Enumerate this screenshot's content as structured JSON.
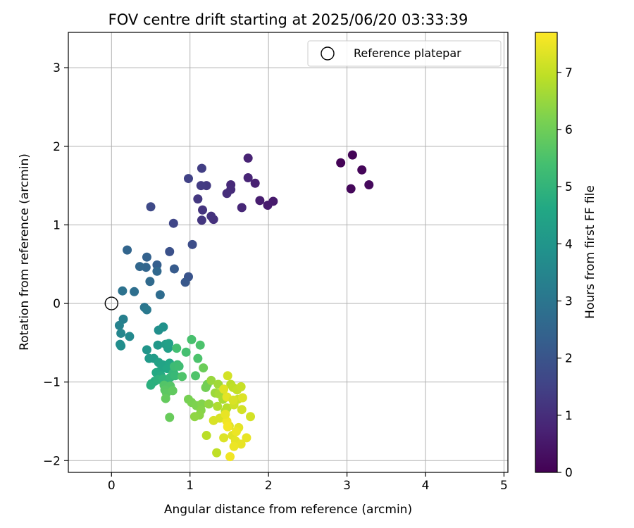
{
  "chart_data": {
    "type": "scatter",
    "title": "FOV centre drift starting at 2025/06/20 03:33:39",
    "xlabel": "Angular distance from reference (arcmin)",
    "ylabel": "Rotation from reference (arcmin)",
    "xlim": [
      -0.55,
      5.05
    ],
    "ylim": [
      -2.15,
      3.45
    ],
    "xticks": [
      0,
      1,
      2,
      3,
      4,
      5
    ],
    "yticks": [
      -2,
      -1,
      0,
      1,
      2,
      3
    ],
    "xtick_labels": [
      "0",
      "1",
      "2",
      "3",
      "4",
      "5"
    ],
    "ytick_labels": [
      "−2",
      "−1",
      "0",
      "1",
      "2",
      "3"
    ],
    "grid": true,
    "legend": {
      "placement": "top-right",
      "entries": [
        {
          "label": "Reference platepar",
          "marker": "open-circle",
          "x": 0,
          "y": 0
        }
      ]
    },
    "colorbar": {
      "label": "Hours from first FF file",
      "colormap": "viridis",
      "range": [
        0,
        7.7
      ],
      "ticks": [
        0,
        1,
        2,
        3,
        4,
        5,
        6,
        7
      ],
      "tick_labels": [
        "0",
        "1",
        "2",
        "3",
        "4",
        "5",
        "6",
        "7"
      ]
    },
    "series": [
      {
        "columns": [
          "x",
          "y",
          "hours"
        ],
        "points": [
          [
            2.92,
            1.79,
            0.05
          ],
          [
            3.07,
            1.89,
            0.08
          ],
          [
            3.19,
            1.7,
            0.12
          ],
          [
            3.05,
            1.46,
            0.15
          ],
          [
            3.28,
            1.51,
            0.18
          ],
          [
            2.06,
            1.3,
            0.55
          ],
          [
            1.99,
            1.25,
            0.58
          ],
          [
            1.89,
            1.31,
            0.62
          ],
          [
            1.83,
            1.53,
            0.7
          ],
          [
            1.74,
            1.85,
            0.75
          ],
          [
            1.74,
            1.6,
            0.8
          ],
          [
            1.66,
            1.22,
            0.85
          ],
          [
            1.52,
            1.51,
            0.9
          ],
          [
            1.52,
            1.45,
            0.95
          ],
          [
            1.47,
            1.4,
            1.0
          ],
          [
            1.3,
            1.07,
            1.05
          ],
          [
            1.27,
            1.11,
            1.1
          ],
          [
            1.16,
            1.19,
            1.15
          ],
          [
            1.15,
            1.06,
            1.2
          ],
          [
            1.1,
            1.33,
            1.25
          ],
          [
            1.21,
            1.5,
            1.3
          ],
          [
            1.14,
            1.5,
            1.35
          ],
          [
            1.15,
            1.72,
            1.4
          ],
          [
            0.98,
            1.59,
            1.5
          ],
          [
            0.79,
            1.02,
            1.6
          ],
          [
            0.5,
            1.23,
            1.7
          ],
          [
            1.03,
            0.75,
            1.8
          ],
          [
            0.74,
            0.66,
            1.9
          ],
          [
            0.98,
            0.34,
            2.0
          ],
          [
            0.94,
            0.27,
            2.1
          ],
          [
            0.8,
            0.44,
            2.2
          ],
          [
            0.58,
            0.49,
            2.3
          ],
          [
            0.45,
            0.59,
            2.4
          ],
          [
            0.44,
            0.46,
            2.5
          ],
          [
            0.2,
            0.68,
            2.5
          ],
          [
            0.36,
            0.47,
            2.55
          ],
          [
            0.58,
            0.41,
            2.6
          ],
          [
            0.49,
            0.28,
            2.65
          ],
          [
            0.62,
            0.11,
            2.7
          ],
          [
            0.29,
            0.15,
            2.8
          ],
          [
            0.14,
            0.16,
            2.9
          ],
          [
            0.42,
            -0.05,
            3.0
          ],
          [
            0.45,
            -0.08,
            3.1
          ],
          [
            0.15,
            -0.2,
            3.3
          ],
          [
            0.1,
            -0.28,
            3.4
          ],
          [
            0.12,
            -0.38,
            3.5
          ],
          [
            0.23,
            -0.42,
            3.6
          ],
          [
            0.11,
            -0.52,
            3.7
          ],
          [
            0.12,
            -0.54,
            3.75
          ],
          [
            0.6,
            -0.34,
            3.8
          ],
          [
            0.66,
            -0.3,
            3.9
          ],
          [
            0.45,
            -0.59,
            4.0
          ],
          [
            0.59,
            -0.53,
            4.1
          ],
          [
            0.48,
            -0.7,
            4.15
          ],
          [
            0.54,
            -0.7,
            4.2
          ],
          [
            0.69,
            -0.52,
            4.25
          ],
          [
            0.72,
            -0.57,
            4.3
          ],
          [
            0.73,
            -0.51,
            4.35
          ],
          [
            0.6,
            -0.75,
            4.4
          ],
          [
            0.65,
            -0.78,
            4.45
          ],
          [
            0.62,
            -0.86,
            4.5
          ],
          [
            0.74,
            -0.76,
            4.55
          ],
          [
            0.71,
            -0.83,
            4.6
          ],
          [
            0.57,
            -0.88,
            4.65
          ],
          [
            0.63,
            -0.92,
            4.7
          ],
          [
            0.55,
            -0.99,
            4.75
          ],
          [
            0.51,
            -1.02,
            4.8
          ],
          [
            0.5,
            -1.04,
            4.85
          ],
          [
            0.59,
            -0.97,
            4.9
          ],
          [
            0.66,
            -0.96,
            4.95
          ],
          [
            0.7,
            -1.0,
            5.0
          ],
          [
            0.75,
            -0.94,
            5.05
          ],
          [
            0.79,
            -0.88,
            5.1
          ],
          [
            0.81,
            -0.92,
            5.15
          ],
          [
            0.84,
            -0.78,
            5.2
          ],
          [
            0.8,
            -0.8,
            5.25
          ],
          [
            0.86,
            -0.8,
            5.3
          ],
          [
            0.83,
            -0.57,
            5.35
          ],
          [
            0.95,
            -0.62,
            5.4
          ],
          [
            1.02,
            -0.46,
            5.45
          ],
          [
            1.13,
            -0.53,
            5.5
          ],
          [
            1.1,
            -0.7,
            5.5
          ],
          [
            0.9,
            -0.93,
            5.55
          ],
          [
            1.07,
            -0.92,
            5.55
          ],
          [
            0.67,
            -1.04,
            5.6
          ],
          [
            0.75,
            -1.05,
            5.65
          ],
          [
            0.68,
            -1.1,
            5.7
          ],
          [
            0.7,
            -1.14,
            5.75
          ],
          [
            0.78,
            -1.11,
            5.8
          ],
          [
            0.69,
            -1.21,
            5.85
          ],
          [
            0.74,
            -1.45,
            5.9
          ],
          [
            1.17,
            -0.82,
            5.95
          ],
          [
            1.22,
            -1.03,
            6.0
          ],
          [
            1.2,
            -1.07,
            6.05
          ],
          [
            0.98,
            -1.22,
            6.1
          ],
          [
            1.02,
            -1.26,
            6.15
          ],
          [
            1.08,
            -1.3,
            6.2
          ],
          [
            1.15,
            -1.28,
            6.25
          ],
          [
            1.14,
            -1.36,
            6.3
          ],
          [
            1.12,
            -1.42,
            6.35
          ],
          [
            1.06,
            -1.44,
            6.4
          ],
          [
            1.24,
            -1.28,
            6.45
          ],
          [
            1.27,
            -0.98,
            6.5
          ],
          [
            1.32,
            -1.14,
            6.55
          ],
          [
            1.36,
            -1.03,
            6.6
          ],
          [
            1.37,
            -1.15,
            6.65
          ],
          [
            1.42,
            -1.22,
            6.7
          ],
          [
            1.35,
            -1.31,
            6.75
          ],
          [
            1.45,
            -1.37,
            6.8
          ],
          [
            1.47,
            -1.33,
            6.85
          ],
          [
            1.52,
            -1.03,
            6.9
          ],
          [
            1.55,
            -1.07,
            6.95
          ],
          [
            1.6,
            -1.1,
            7.0
          ],
          [
            1.65,
            -1.06,
            7.05
          ],
          [
            1.61,
            -1.22,
            7.1
          ],
          [
            1.56,
            -1.29,
            7.15
          ],
          [
            1.66,
            -1.35,
            7.2
          ],
          [
            1.77,
            -1.44,
            7.2
          ],
          [
            1.38,
            -1.46,
            7.25
          ],
          [
            1.3,
            -1.49,
            7.25
          ],
          [
            1.21,
            -1.68,
            6.9
          ],
          [
            1.34,
            -1.9,
            6.95
          ],
          [
            1.43,
            -1.71,
            7.3
          ],
          [
            1.5,
            -1.56,
            7.35
          ],
          [
            1.54,
            -1.68,
            7.35
          ],
          [
            1.58,
            -1.75,
            7.4
          ],
          [
            1.62,
            -1.58,
            7.4
          ],
          [
            1.65,
            -1.79,
            7.45
          ],
          [
            1.72,
            -1.71,
            7.45
          ],
          [
            1.56,
            -1.82,
            7.5
          ],
          [
            1.51,
            -1.95,
            7.55
          ],
          [
            1.47,
            -1.5,
            7.55
          ],
          [
            1.45,
            -1.41,
            7.45
          ],
          [
            1.48,
            -1.57,
            7.6
          ],
          [
            1.59,
            -1.63,
            7.5
          ],
          [
            1.67,
            -1.2,
            7.3
          ],
          [
            1.47,
            -1.19,
            7.4
          ],
          [
            1.55,
            -1.23,
            7.25
          ],
          [
            1.48,
            -0.92,
            7.2
          ],
          [
            1.43,
            -1.09,
            7.35
          ]
        ]
      }
    ]
  }
}
